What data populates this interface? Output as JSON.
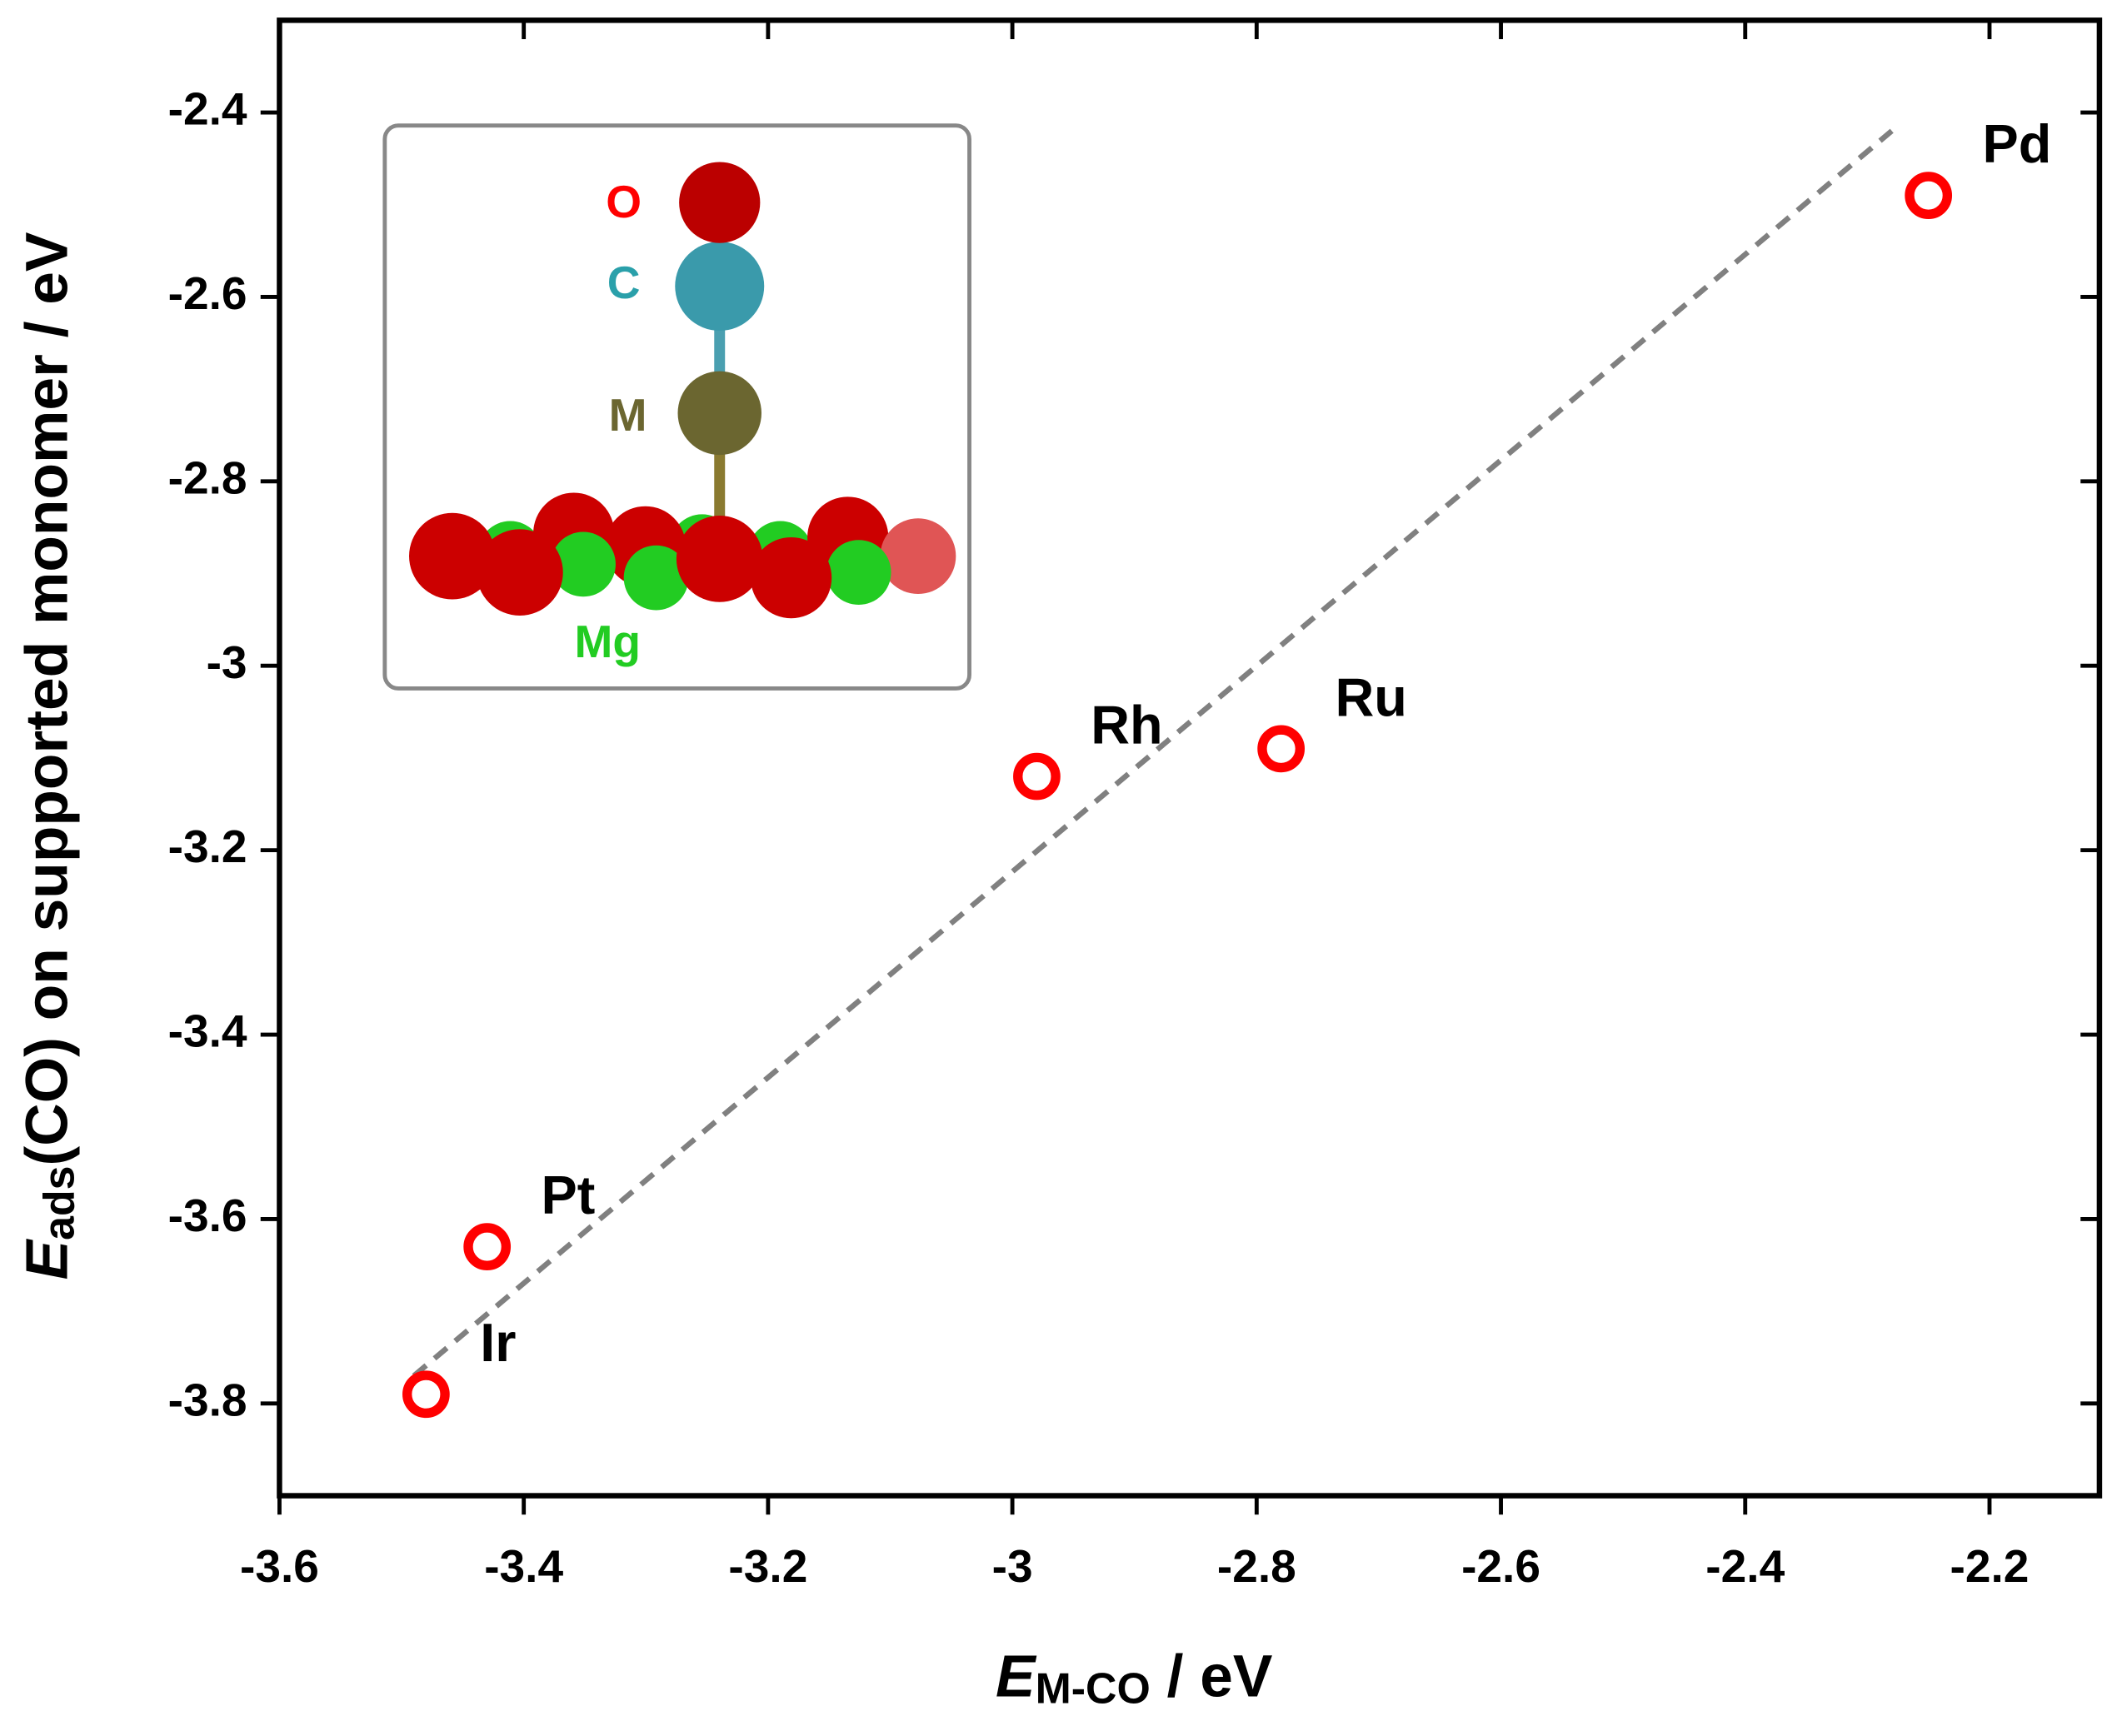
{
  "chart_data": {
    "type": "scatter",
    "xlabel": {
      "main": "E",
      "sub": "M-CO",
      "rest": " / eV"
    },
    "ylabel": {
      "main": "E",
      "sub": "ads",
      "rest": "(CO) on supported monomer / eV"
    },
    "xlim": [
      -3.6,
      -2.11
    ],
    "ylim": [
      -3.9,
      -2.3
    ],
    "xticks": [
      -3.6,
      -3.4,
      -3.2,
      -3.0,
      -2.8,
      -2.6,
      -2.4,
      -2.2
    ],
    "yticks": [
      -3.8,
      -3.6,
      -3.4,
      -3.2,
      -3.0,
      -2.8,
      -2.6,
      -2.4
    ],
    "series": [
      {
        "color": "#ff0000",
        "labels": [
          "Ir",
          "Pt",
          "Rh",
          "Ru",
          "Pd"
        ],
        "x": [
          -3.48,
          -3.43,
          -2.98,
          -2.78,
          -2.25
        ],
        "y": [
          -3.79,
          -3.63,
          -3.12,
          -3.09,
          -2.49
        ]
      }
    ],
    "fit_line": {
      "color": "#808080",
      "x": [
        -3.49,
        -2.28
      ],
      "y": [
        -3.77,
        -2.42
      ]
    },
    "inset_labels": [
      "O",
      "C",
      "M",
      "Mg"
    ]
  }
}
